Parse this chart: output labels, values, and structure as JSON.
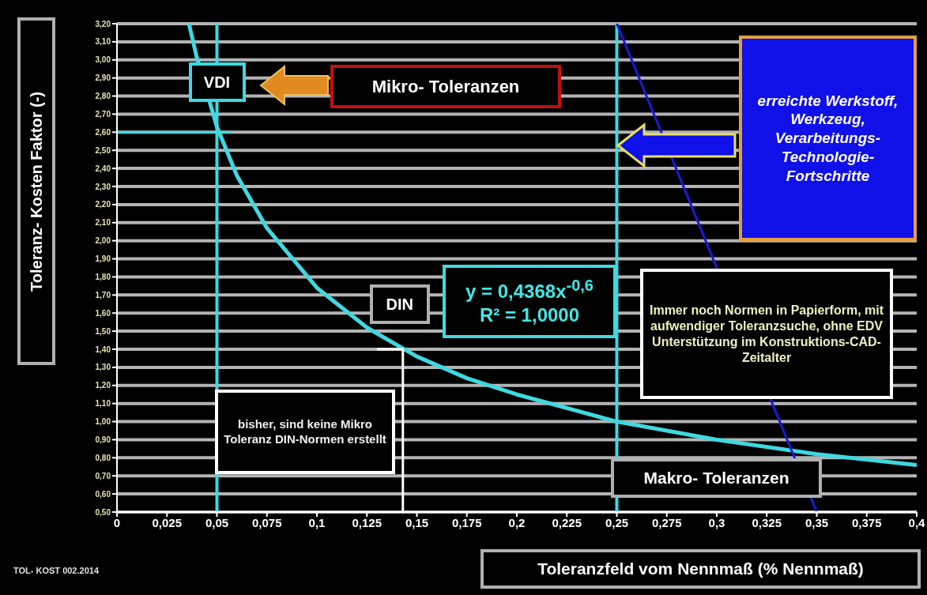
{
  "chart_data": {
    "type": "line",
    "xlabel": "Toleranzfeld vom Nennmaß (% Nennmaß)",
    "ylabel": "Toleranz- Kosten Faktor (-)",
    "xlim": [
      0,
      0.4
    ],
    "xticks": [
      {
        "value": 0,
        "label": "0"
      },
      {
        "value": 0.025,
        "label": "0,025"
      },
      {
        "value": 0.05,
        "label": "0,05"
      },
      {
        "value": 0.075,
        "label": "0,075"
      },
      {
        "value": 0.1,
        "label": "0,1"
      },
      {
        "value": 0.125,
        "label": "0,125"
      },
      {
        "value": 0.15,
        "label": "0,15"
      },
      {
        "value": 0.175,
        "label": "0,175"
      },
      {
        "value": 0.2,
        "label": "0,2"
      },
      {
        "value": 0.225,
        "label": "0,225"
      },
      {
        "value": 0.25,
        "label": "0,25"
      },
      {
        "value": 0.275,
        "label": "0,275"
      },
      {
        "value": 0.3,
        "label": "0,3"
      },
      {
        "value": 0.325,
        "label": "0,325"
      },
      {
        "value": 0.35,
        "label": "0,35"
      },
      {
        "value": 0.375,
        "label": "0,375"
      },
      {
        "value": 0.4,
        "label": "0,4"
      }
    ],
    "ylim": [
      0.5,
      3.2
    ],
    "yticks": [
      {
        "value": 0.5,
        "label": "0,50"
      },
      {
        "value": 0.6,
        "label": "0,60"
      },
      {
        "value": 0.7,
        "label": "0,70"
      },
      {
        "value": 0.8,
        "label": "0,80"
      },
      {
        "value": 0.9,
        "label": "0,90"
      },
      {
        "value": 1.0,
        "label": "1,00"
      },
      {
        "value": 1.1,
        "label": "1,10"
      },
      {
        "value": 1.2,
        "label": "1,20"
      },
      {
        "value": 1.3,
        "label": "1,30"
      },
      {
        "value": 1.4,
        "label": "1,40"
      },
      {
        "value": 1.5,
        "label": "1,50"
      },
      {
        "value": 1.6,
        "label": "1,60"
      },
      {
        "value": 1.7,
        "label": "1,70"
      },
      {
        "value": 1.8,
        "label": "1,80"
      },
      {
        "value": 1.9,
        "label": "1,90"
      },
      {
        "value": 2.0,
        "label": "2,00"
      },
      {
        "value": 2.1,
        "label": "2,10"
      },
      {
        "value": 2.2,
        "label": "2,20"
      },
      {
        "value": 2.3,
        "label": "2,30"
      },
      {
        "value": 2.4,
        "label": "2,40"
      },
      {
        "value": 2.5,
        "label": "2,50"
      },
      {
        "value": 2.6,
        "label": "2,60"
      },
      {
        "value": 2.7,
        "label": "2,70"
      },
      {
        "value": 2.8,
        "label": "2,80"
      },
      {
        "value": 2.9,
        "label": "2,90"
      },
      {
        "value": 3.0,
        "label": "3,00"
      },
      {
        "value": 3.1,
        "label": "3,10"
      },
      {
        "value": 3.2,
        "label": "3,20"
      }
    ],
    "grid": "y",
    "marker": "none",
    "line_style": "solid",
    "series": [
      {
        "color": "#40d8e0",
        "x": [
          0.036,
          0.04,
          0.05,
          0.06,
          0.075,
          0.1,
          0.125,
          0.15,
          0.175,
          0.2,
          0.25,
          0.3,
          0.35,
          0.4
        ],
        "values": [
          3.2,
          3.01,
          2.63,
          2.36,
          2.07,
          1.74,
          1.52,
          1.36,
          1.24,
          1.15,
          1.0,
          0.9,
          0.82,
          0.76
        ]
      },
      {
        "color": "#1a1ad8",
        "x": [
          0.25,
          0.35
        ],
        "values": [
          3.2,
          0.5
        ]
      },
      {
        "color": "#40d8e0",
        "x": [
          0,
          0.057
        ],
        "values": [
          2.6,
          2.6
        ]
      },
      {
        "color": "#ffffff",
        "x": [
          0.13,
          0.143,
          0.143
        ],
        "values": [
          1.4,
          1.4,
          0.5
        ]
      }
    ],
    "ref_lines": [
      {
        "axis": "x",
        "value": 0.05,
        "color": "#40d8e0"
      },
      {
        "axis": "x",
        "value": 0.25,
        "color": "#40d8e0"
      }
    ],
    "annotations": [
      {
        "text": "VDI",
        "x": 0.05,
        "y": 2.6
      },
      "Mikro- Toleranzen",
      "erreichte Werkstoff, Werkzeug, Verarbeitungs-Technologie-Fortschritte",
      {
        "text": "DIN",
        "x": 0.143,
        "y": 1.4
      },
      "y = 0,4368x$^{-0,6}$\nR² = 1,0000",
      "Immer noch Normen in Papierform, mit aufwendiger Toleranzsuche, ohne EDV Unterstützung im Konstruktions-CAD-Zeitalter",
      "bisher, sind keine Mikro Toleranz DIN-Normen erstellt",
      "Makro- Toleranzen",
      "TOL- KOST 002.2014"
    ]
  }
}
